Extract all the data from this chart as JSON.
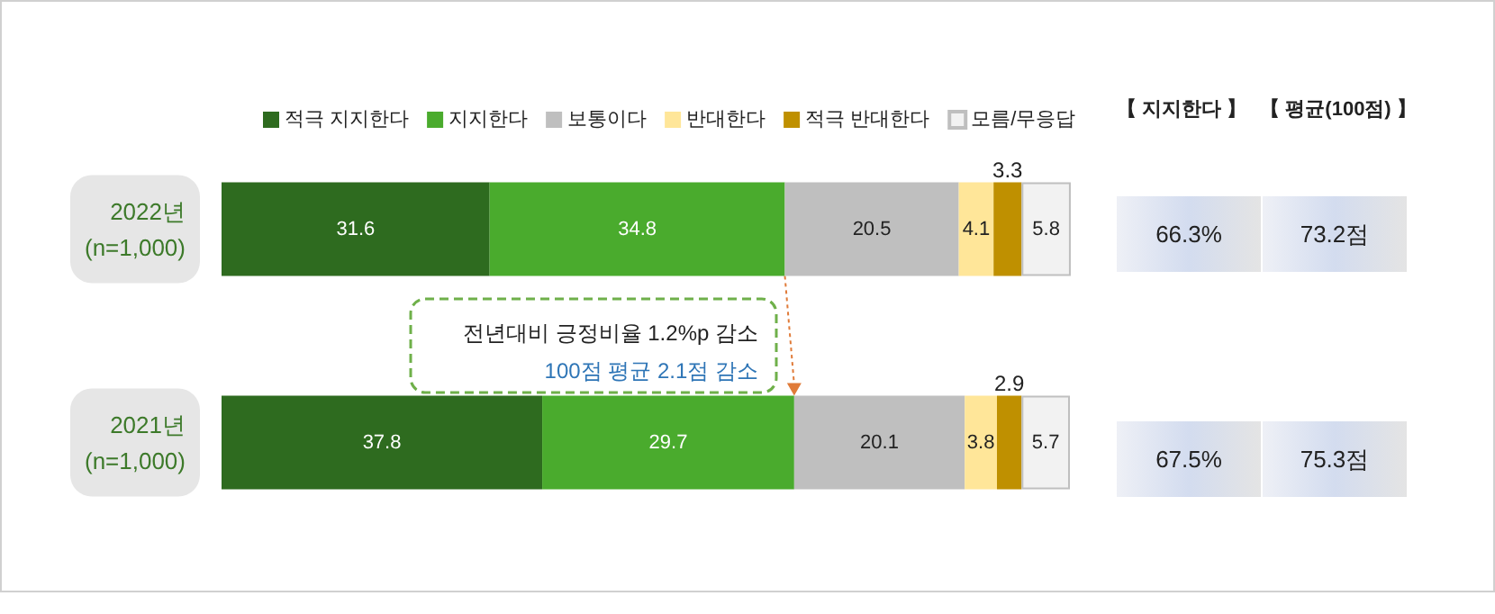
{
  "chart_data": {
    "type": "bar",
    "orientation": "horizontal",
    "stacked": true,
    "data_labels": true,
    "legend": "top",
    "tick_labels": "y",
    "categories": [
      "2022년\n(n=1,000)",
      "2021년\n(n=1,000)"
    ],
    "xlim": [
      0,
      100
    ],
    "series": [
      {
        "name": "적극 지지한다",
        "color": "#2e6b1f",
        "values": [
          31.6,
          37.8
        ]
      },
      {
        "name": "지지한다",
        "color": "#4aab2d",
        "values": [
          34.8,
          29.7
        ]
      },
      {
        "name": "보통이다",
        "color": "#bfbfbf",
        "values": [
          20.5,
          20.1
        ]
      },
      {
        "name": "반대한다",
        "color": "#ffe699",
        "values": [
          4.1,
          3.8
        ]
      },
      {
        "name": "적극 반대한다",
        "color": "#bf9000",
        "values": [
          3.3,
          2.9
        ]
      },
      {
        "name": "모름/무응답",
        "color": "#f2f2f2",
        "values": [
          5.8,
          5.7
        ]
      }
    ],
    "annotations": [
      "【 지지한다 】",
      "【 평균(100점) 】",
      "66.3%",
      "73.2점",
      "67.5%",
      "75.3점",
      "전년대비 긍정비율 1.2%p 감소",
      "100점 평균 2.1점 감소"
    ]
  }
}
